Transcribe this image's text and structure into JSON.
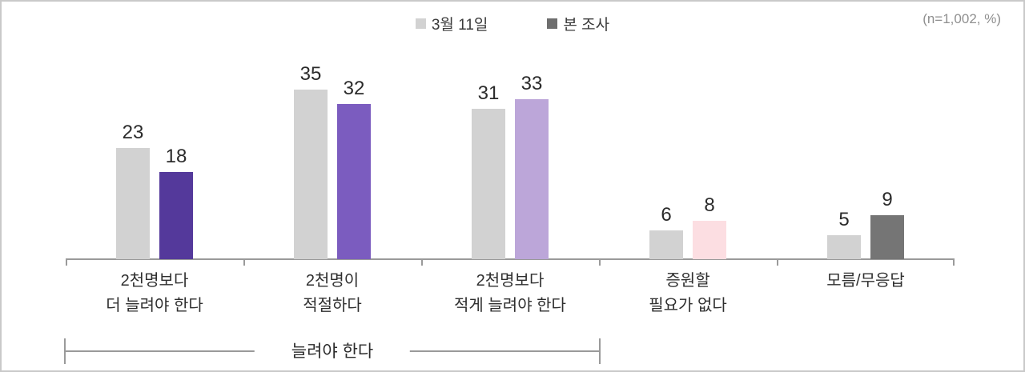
{
  "header": {
    "legend": [
      {
        "label": "3월 11일",
        "swatch": "#D2D2D2"
      },
      {
        "label": "본 조사",
        "swatch": "#6E6E6E"
      }
    ],
    "note": "(n=1,002, %)"
  },
  "chart_data": {
    "type": "bar",
    "title": "",
    "categories": [
      "2천명보다 더 늘려야 한다",
      "2천명이 적절하다",
      "2천명보다 적게 늘려야 한다",
      "증원할 필요가 없다",
      "모름/무응답"
    ],
    "category_label_lines": [
      [
        "2천명보다",
        "더 늘려야 한다"
      ],
      [
        "2천명이",
        "적절하다"
      ],
      [
        "2천명보다",
        "적게 늘려야 한다"
      ],
      [
        "증원할",
        "필요가 없다"
      ],
      [
        "모름/무응답"
      ]
    ],
    "series": [
      {
        "name": "3월 11일",
        "values": [
          23,
          35,
          31,
          6,
          5
        ],
        "color": "#D2D2D2"
      },
      {
        "name": "본 조사",
        "values": [
          18,
          32,
          33,
          8,
          9
        ],
        "colors": [
          "#54399B",
          "#7B5CBF",
          "#BCA6D9",
          "#FCDEE2",
          "#757575"
        ]
      }
    ],
    "ylim": [
      0,
      38
    ],
    "grid": false,
    "legend_position": "top-center",
    "value_labels": true,
    "bracket": {
      "label": "늘려야 한다",
      "span_categories": [
        0,
        2
      ]
    },
    "axis_color": "#9A9A9A"
  }
}
